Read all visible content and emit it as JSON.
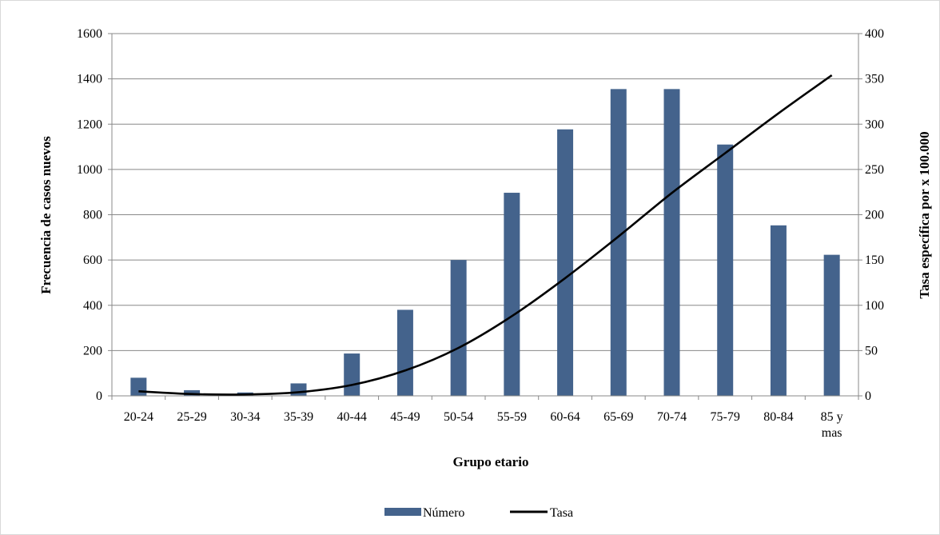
{
  "chart_data": {
    "type": "bar",
    "categories": [
      "20-24",
      "25-29",
      "30-34",
      "35-39",
      "40-44",
      "45-49",
      "50-54",
      "55-59",
      "60-64",
      "65-69",
      "70-74",
      "75-79",
      "80-84",
      "85 y mas"
    ],
    "series": [
      {
        "name": "Número",
        "type": "bar",
        "axis": "left",
        "color": "#44638c",
        "values": [
          80,
          25,
          15,
          55,
          187,
          380,
          600,
          897,
          1177,
          1355,
          1355,
          1110,
          753,
          623
        ]
      },
      {
        "name": "Tasa",
        "type": "line",
        "axis": "right",
        "color": "#000000",
        "values": [
          5,
          2,
          1.5,
          4,
          12,
          28,
          53,
          88,
          130,
          176,
          224,
          268,
          312,
          354
        ]
      }
    ],
    "xlabel": "Grupo etario",
    "ylabel": "Frecuencia de casos nuevos",
    "y2label": "Tasa específica por x 100.000",
    "ylim": [
      0,
      1600
    ],
    "y2lim": [
      0,
      400
    ],
    "yticks": [
      0,
      200,
      400,
      600,
      800,
      1000,
      1200,
      1400,
      1600
    ],
    "y2ticks": [
      0,
      50,
      100,
      150,
      200,
      250,
      300,
      350,
      400
    ],
    "grid": true,
    "legend": "bottom"
  }
}
